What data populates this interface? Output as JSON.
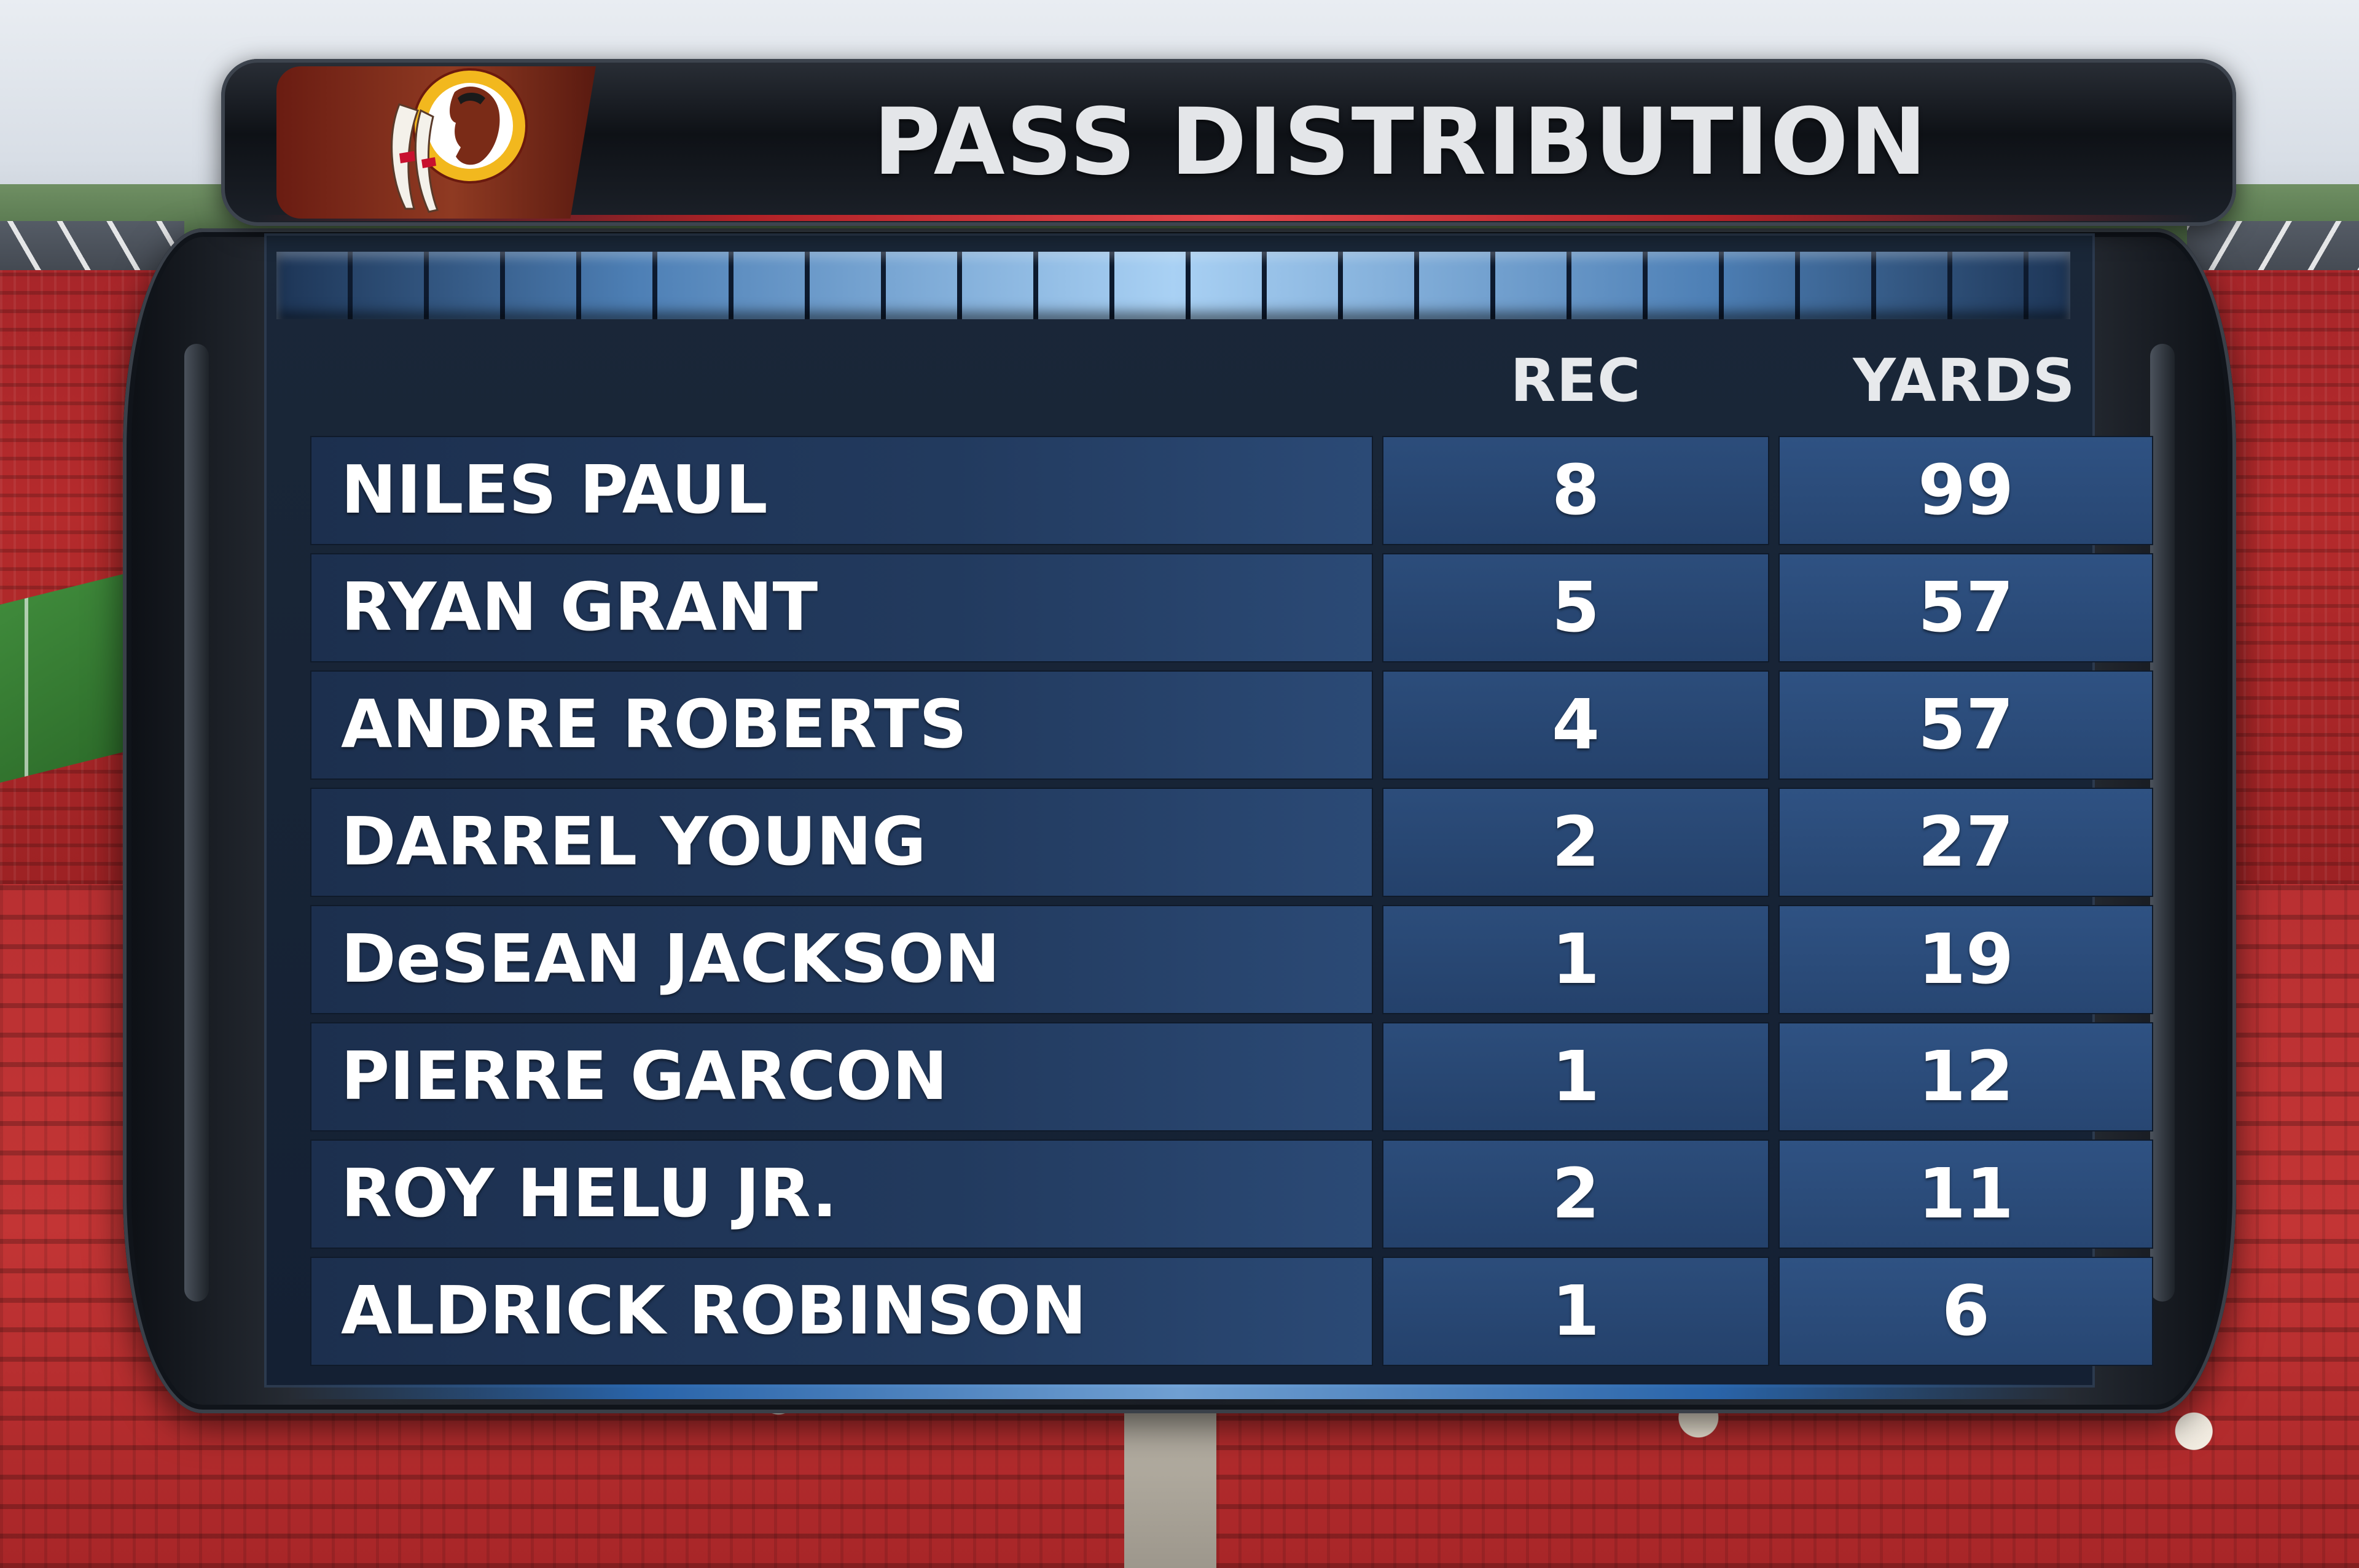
{
  "title": "PASS DISTRIBUTION",
  "team_logo_icon": "redskins-logo-icon",
  "colors": {
    "board_dark": "#141a22",
    "row_blue": "#223a5e",
    "led_blue": "#a9d1f4",
    "accent_red": "#b02126",
    "text_white": "#ffffff"
  },
  "columns": {
    "rec": "REC",
    "yards": "YARDS"
  },
  "rows": [
    {
      "player": "NILES PAUL",
      "rec": "8",
      "yards": "99"
    },
    {
      "player": "RYAN GRANT",
      "rec": "5",
      "yards": "57"
    },
    {
      "player": "ANDRE ROBERTS",
      "rec": "4",
      "yards": "57"
    },
    {
      "player": "DARREL YOUNG",
      "rec": "2",
      "yards": "27"
    },
    {
      "player": "DeSEAN JACKSON",
      "rec": "1",
      "yards": "19"
    },
    {
      "player": "PIERRE GARCON",
      "rec": "1",
      "yards": "12"
    },
    {
      "player": "ROY HELU JR.",
      "rec": "2",
      "yards": "11"
    },
    {
      "player": "ALDRICK ROBINSON",
      "rec": "1",
      "yards": "6"
    }
  ]
}
